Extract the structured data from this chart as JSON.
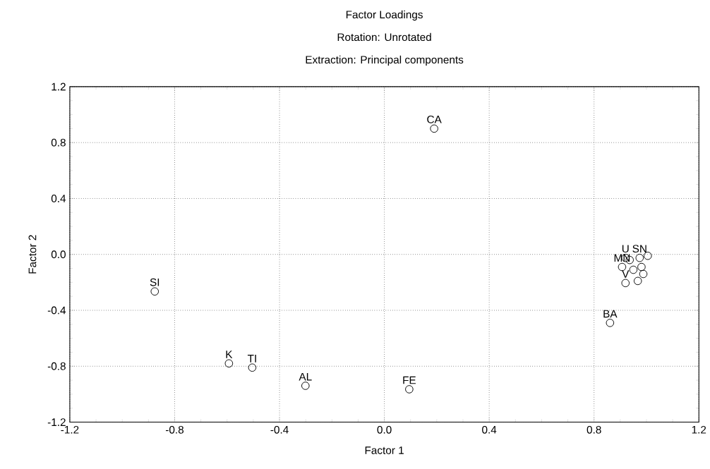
{
  "chart_data": {
    "type": "scatter",
    "title": "Factor Loadings",
    "subtitle": "Rotation: Unrotated",
    "xlabel": "Factor 1",
    "ylabel": "Factor 2",
    "x": [
      0.19,
      -0.876,
      -0.593,
      -0.504,
      -0.301,
      0.095,
      0.861,
      0.92,
      0.967,
      0.907,
      0.92,
      0.974,
      0.981,
      0.988,
      1.005,
      0.936,
      0.95
    ],
    "values": [
      0.9,
      -0.265,
      -0.78,
      -0.81,
      -0.94,
      -0.965,
      -0.49,
      -0.205,
      -0.19,
      -0.09,
      -0.025,
      -0.025,
      -0.09,
      -0.14,
      -0.01,
      -0.04,
      -0.11
    ],
    "color": "#000000",
    "marker": "circle",
    "grid": true,
    "xlim": [
      -1.2,
      1.2
    ],
    "ylim": [
      -1.2,
      1.2
    ],
    "xticks": [
      -1.2,
      -0.8,
      -0.4,
      {
        "value": 0,
        "label": "0.0"
      },
      0.4,
      0.8,
      1.2
    ],
    "yticks": [
      -1.2,
      -0.8,
      -0.4,
      {
        "value": 0,
        "label": "0.0"
      },
      0.4,
      0.8,
      1.2
    ],
    "annotations": [
      "Extraction: Principal components",
      {
        "text": "CA",
        "x": 0.19,
        "y": 0.9
      },
      {
        "text": "SI",
        "x": -0.876,
        "y": -0.265
      },
      {
        "text": "K",
        "x": -0.593,
        "y": -0.78
      },
      {
        "text": "TI",
        "x": -0.504,
        "y": -0.81
      },
      {
        "text": "AL",
        "x": -0.301,
        "y": -0.94
      },
      {
        "text": "FE",
        "x": 0.095,
        "y": -0.965
      },
      {
        "text": "BA",
        "x": 0.861,
        "y": -0.49
      },
      {
        "text": "V",
        "x": 0.92,
        "y": -0.205
      },
      {
        "text": "U",
        "x": 0.92,
        "y": -0.025
      },
      {
        "text": "MN",
        "x": 0.907,
        "y": -0.09
      },
      {
        "text": "SN",
        "x": 0.974,
        "y": -0.025
      }
    ]
  }
}
